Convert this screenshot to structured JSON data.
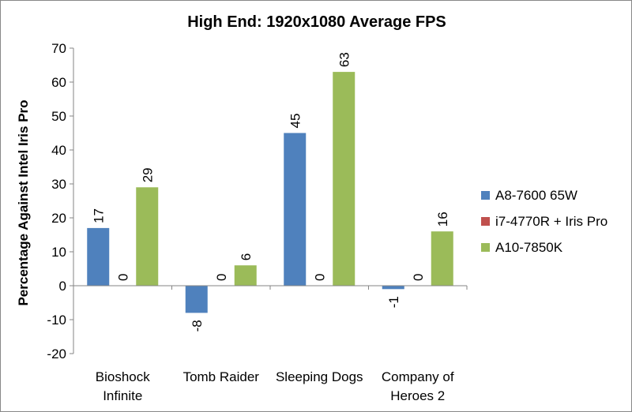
{
  "chart_data": {
    "type": "bar",
    "title": "High End: 1920x1080 Average FPS",
    "ylabel": "Percentage Against Intel Iris Pro",
    "xlabel": "",
    "ylim": [
      -20,
      70
    ],
    "yticks": [
      -20,
      -10,
      0,
      10,
      20,
      30,
      40,
      50,
      60,
      70
    ],
    "categories": [
      [
        "Bioshock",
        "Infinite"
      ],
      [
        "Tomb Raider"
      ],
      [
        "Sleeping Dogs"
      ],
      [
        "Company of",
        "Heroes 2"
      ]
    ],
    "series": [
      {
        "name": "A8-7600 65W",
        "color": "#4f81bd",
        "values": [
          17,
          -8,
          45,
          -1
        ]
      },
      {
        "name": "i7-4770R + Iris Pro",
        "color": "#c0504d",
        "values": [
          0,
          0,
          0,
          0
        ]
      },
      {
        "name": "A10-7850K",
        "color": "#9bbb59",
        "values": [
          29,
          6,
          63,
          16
        ]
      }
    ],
    "data_labels": true,
    "grid": false,
    "legend": "right"
  }
}
